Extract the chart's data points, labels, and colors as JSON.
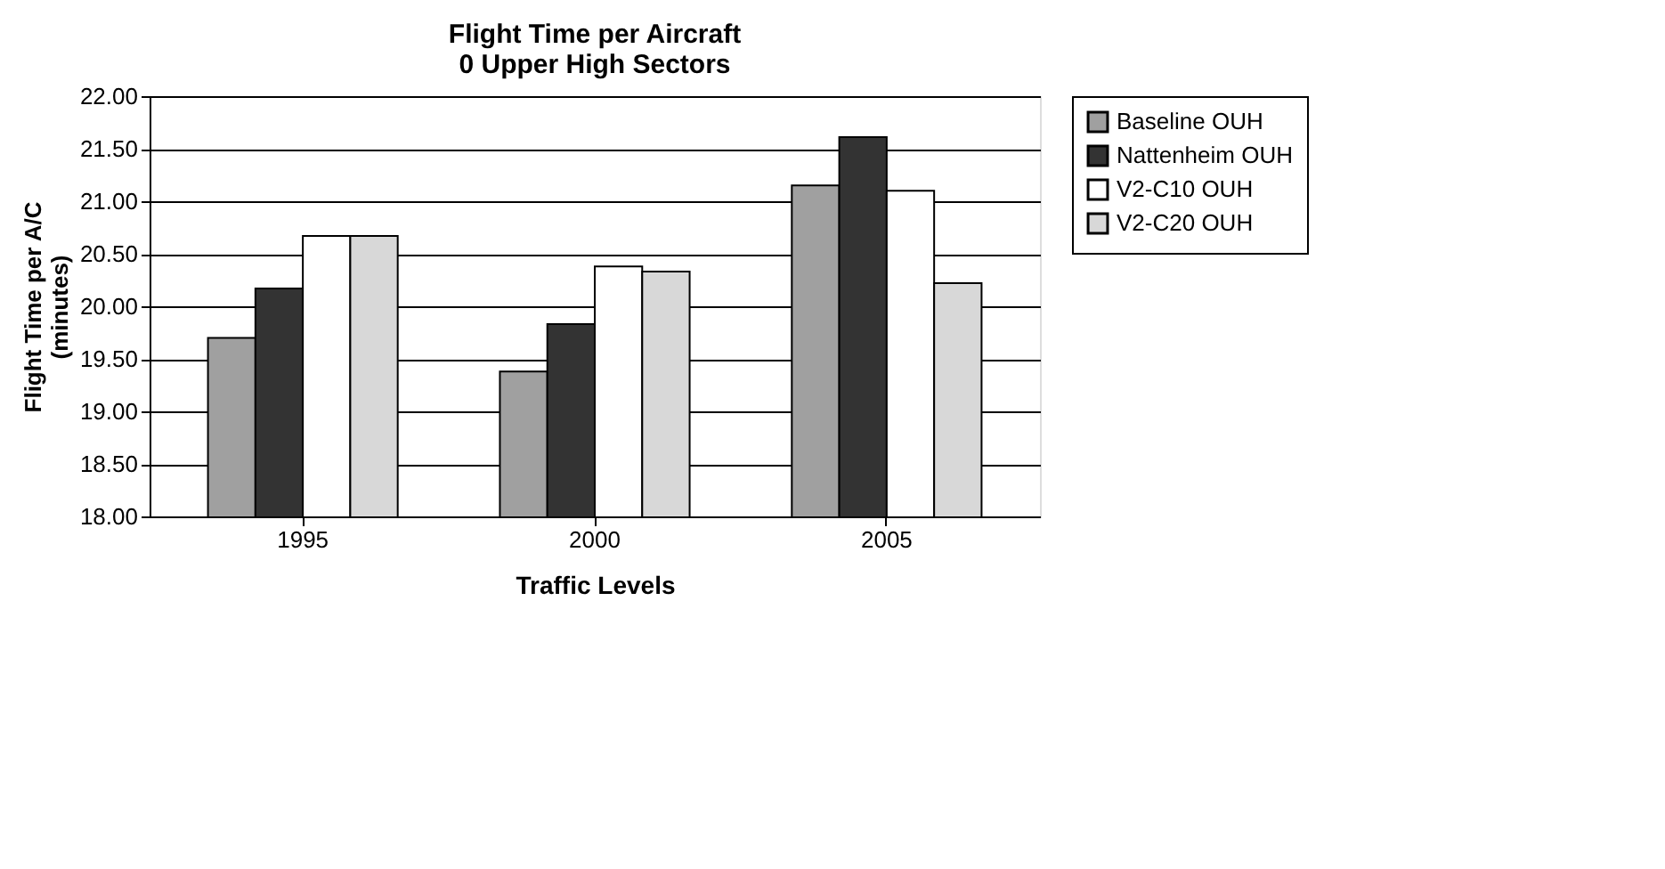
{
  "chart_data": {
    "type": "bar",
    "title": "Flight Time per Aircraft\n0 Upper High Sectors",
    "xlabel": "Traffic Levels",
    "ylabel": "Flight Time per A/C\n(minutes)",
    "categories": [
      "1995",
      "2000",
      "2005"
    ],
    "series": [
      {
        "name": "Baseline OUH",
        "color": "#a0a0a0",
        "values": [
          19.7,
          19.38,
          21.15
        ]
      },
      {
        "name": "Nattenheim OUH",
        "color": "#333333",
        "values": [
          20.17,
          19.83,
          21.61
        ]
      },
      {
        "name": "V2-C10 OUH",
        "color": "#ffffff",
        "values": [
          20.67,
          20.38,
          21.1
        ]
      },
      {
        "name": "V2-C20 OUH",
        "color": "#d8d8d8",
        "values": [
          20.67,
          20.33,
          20.22
        ]
      }
    ],
    "ylim": [
      18.0,
      22.0
    ],
    "yticks": [
      {
        "value": 18.0,
        "label": "18.00"
      },
      {
        "value": 18.5,
        "label": "18.50"
      },
      {
        "value": 19.0,
        "label": "19.00"
      },
      {
        "value": 19.5,
        "label": "19.50"
      },
      {
        "value": 20.0,
        "label": "20.00"
      },
      {
        "value": 20.5,
        "label": "20.50"
      },
      {
        "value": 21.0,
        "label": "21.00"
      },
      {
        "value": 21.5,
        "label": "21.50"
      },
      {
        "value": 22.0,
        "label": "22.00"
      }
    ],
    "grid": "y",
    "legend": "right"
  }
}
